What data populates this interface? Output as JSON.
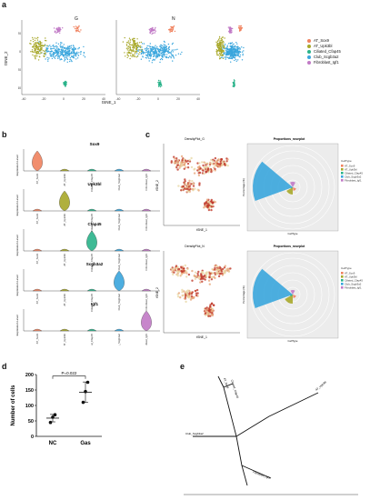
{
  "panel_labels": {
    "a": "a",
    "b": "b",
    "c": "c",
    "d": "d",
    "e": "e"
  },
  "panel_a": {
    "group_titles": [
      "G",
      "N"
    ],
    "x_label": "tSNE_1",
    "y_label": "tSNE_2",
    "x_ticks": [
      "-40",
      "-20",
      "0",
      "20",
      "40"
    ],
    "y_ticks": [
      "20",
      "0",
      "-20",
      "-40"
    ],
    "legend": [
      {
        "label": "AT_Sox9",
        "color": "#f0825f"
      },
      {
        "label": "AT_Upk3bl",
        "color": "#a8a82a"
      },
      {
        "label": "Ciliated_Cfap45",
        "color": "#2ab38a"
      },
      {
        "label": "Club_Scgb3a2",
        "color": "#3aa6dd"
      },
      {
        "label": "Fibroblast_Igf1",
        "color": "#c17ac6"
      }
    ]
  },
  "panel_b": {
    "y_label": "Expression Level",
    "genes": [
      "Sox9",
      "Upk3bl",
      "Cfap45",
      "Scgb3a2",
      "Igf1"
    ],
    "categories": [
      "AT_Sox9",
      "AT_Upk3bl",
      "Ciliated_Cfap45",
      "Club_Scgb3a2",
      "Fibroblast_Igf1"
    ]
  },
  "panel_c": {
    "density_title": "DensityPlot_G",
    "density_title_2": "DensityPlot_N",
    "rose_title": "Proportions_roseplot",
    "x_label": "tSNE_1",
    "y_label": "tSNE_2",
    "rose_y_label": "Percentage (%)",
    "rose_x_label": "CellType",
    "legend_title": "CellType",
    "legend": [
      "AT_Sox9",
      "AT_Upk3bl",
      "Ciliated_Cfap45",
      "Club_Scgb3a2",
      "Fibroblast_Igf1"
    ]
  },
  "chart_data": [
    {
      "type": "scatter",
      "title": "",
      "xlabel": "",
      "ylabel": "Number of cells",
      "categories": [
        "NC",
        "Gas"
      ],
      "ylim": [
        0,
        200
      ],
      "yticks": [
        "0",
        "50",
        "100",
        "150",
        "200"
      ],
      "annotation": "P=0.022",
      "series": [
        {
          "values_by_category": {
            "NC": [
              45,
              62,
              70
            ],
            "Gas": [
              110,
              145,
              175
            ]
          }
        }
      ],
      "means": {
        "NC": 59,
        "Gas": 143
      },
      "sd": {
        "NC": 12,
        "Gas": 33
      }
    }
  ],
  "panel_e": {
    "tip_labels": [
      "AT_Sox9",
      "Ciliated_Cfap45",
      "AT_Upk3bl",
      "Club_Scgb3a2",
      "Fibroblast_Igf1"
    ]
  }
}
